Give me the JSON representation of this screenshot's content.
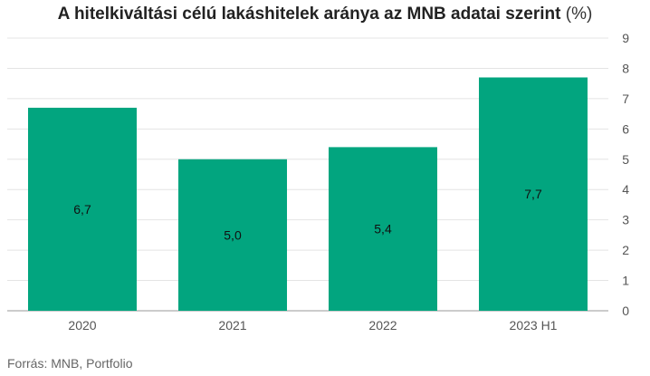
{
  "title": {
    "main": "A hitelkiváltási célú lakáshitelek aránya az MNB adatai szerint",
    "unit": "(%)"
  },
  "source": "Forrás: MNB, Portfolio",
  "colors": {
    "bar": "#02a57f",
    "grid": "#e4e4e4",
    "axis_text": "#555555",
    "label_text": "#111111",
    "baseline": "#9a9a9a"
  },
  "chart_data": {
    "type": "bar",
    "title": "A hitelkiváltási célú lakáshitelek aránya az MNB adatai szerint (%)",
    "categories": [
      "2020",
      "2021",
      "2022",
      "2023 H1"
    ],
    "values": [
      6.7,
      5.0,
      5.4,
      7.7
    ],
    "value_labels": [
      "6,7",
      "5,0",
      "5,4",
      "7,7"
    ],
    "y_ticks": [
      0,
      1,
      2,
      3,
      4,
      5,
      6,
      7,
      8,
      9
    ],
    "ylim": [
      0,
      9
    ],
    "y_axis_side": "right",
    "grid": true,
    "legend": "none",
    "xlabel": "",
    "ylabel": ""
  }
}
